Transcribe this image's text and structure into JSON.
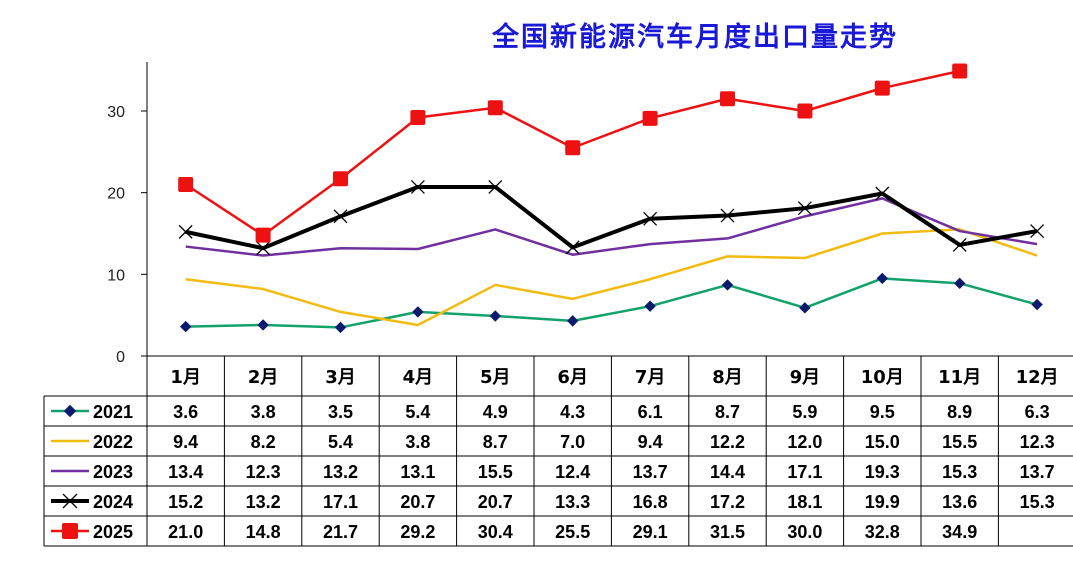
{
  "chart_data": {
    "type": "line",
    "title": "全国新能源汽车月度出口量走势",
    "categories": [
      "1月",
      "2月",
      "3月",
      "4月",
      "5月",
      "6月",
      "7月",
      "8月",
      "9月",
      "10月",
      "11月",
      "12月"
    ],
    "yticks": [
      0,
      10,
      20,
      30
    ],
    "ylim": [
      0,
      36
    ],
    "series": [
      {
        "name": "2021",
        "color": "#12a26a",
        "marker": "diamond",
        "width": 2.5,
        "values": [
          3.6,
          3.8,
          3.5,
          5.4,
          4.9,
          4.3,
          6.1,
          8.7,
          5.9,
          9.5,
          8.9,
          6.3
        ],
        "labels": [
          "3.6",
          "3.8",
          "3.5",
          "5.4",
          "4.9",
          "4.3",
          "6.1",
          "8.7",
          "5.9",
          "9.5",
          "8.9",
          "6.3"
        ]
      },
      {
        "name": "2022",
        "color": "#f2bb10",
        "marker": "none",
        "width": 2.5,
        "values": [
          9.4,
          8.2,
          5.4,
          3.8,
          8.7,
          7.0,
          9.4,
          12.2,
          12.0,
          15.0,
          15.5,
          12.3
        ],
        "labels": [
          "9.4",
          "8.2",
          "5.4",
          "3.8",
          "8.7",
          "7.0",
          "9.4",
          "12.2",
          "12.0",
          "15.0",
          "15.5",
          "12.3"
        ]
      },
      {
        "name": "2023",
        "color": "#7030a0",
        "marker": "none",
        "width": 2.5,
        "values": [
          13.4,
          12.3,
          13.2,
          13.1,
          15.5,
          12.4,
          13.7,
          14.4,
          17.1,
          19.3,
          15.3,
          13.7
        ],
        "labels": [
          "13.4",
          "12.3",
          "13.2",
          "13.1",
          "15.5",
          "12.4",
          "13.7",
          "14.4",
          "17.1",
          "19.3",
          "15.3",
          "13.7"
        ]
      },
      {
        "name": "2024",
        "color": "#000000",
        "marker": "x",
        "width": 4,
        "values": [
          15.2,
          13.2,
          17.1,
          20.7,
          20.7,
          13.3,
          16.8,
          17.2,
          18.1,
          19.9,
          13.6,
          15.3
        ],
        "labels": [
          "15.2",
          "13.2",
          "17.1",
          "20.7",
          "20.7",
          "13.3",
          "16.8",
          "17.2",
          "18.1",
          "19.9",
          "13.6",
          "15.3"
        ]
      },
      {
        "name": "2025",
        "color": "#ee1111",
        "marker": "square",
        "width": 2.5,
        "values": [
          21.0,
          14.8,
          21.7,
          29.2,
          30.4,
          25.5,
          29.1,
          31.5,
          30.0,
          32.8,
          34.9,
          null
        ],
        "labels": [
          "21.0",
          "14.8",
          "21.7",
          "29.2",
          "30.4",
          "25.5",
          "29.1",
          "31.5",
          "30.0",
          "32.8",
          "34.9",
          ""
        ]
      }
    ],
    "grid": false,
    "legend": "data-table-left"
  }
}
